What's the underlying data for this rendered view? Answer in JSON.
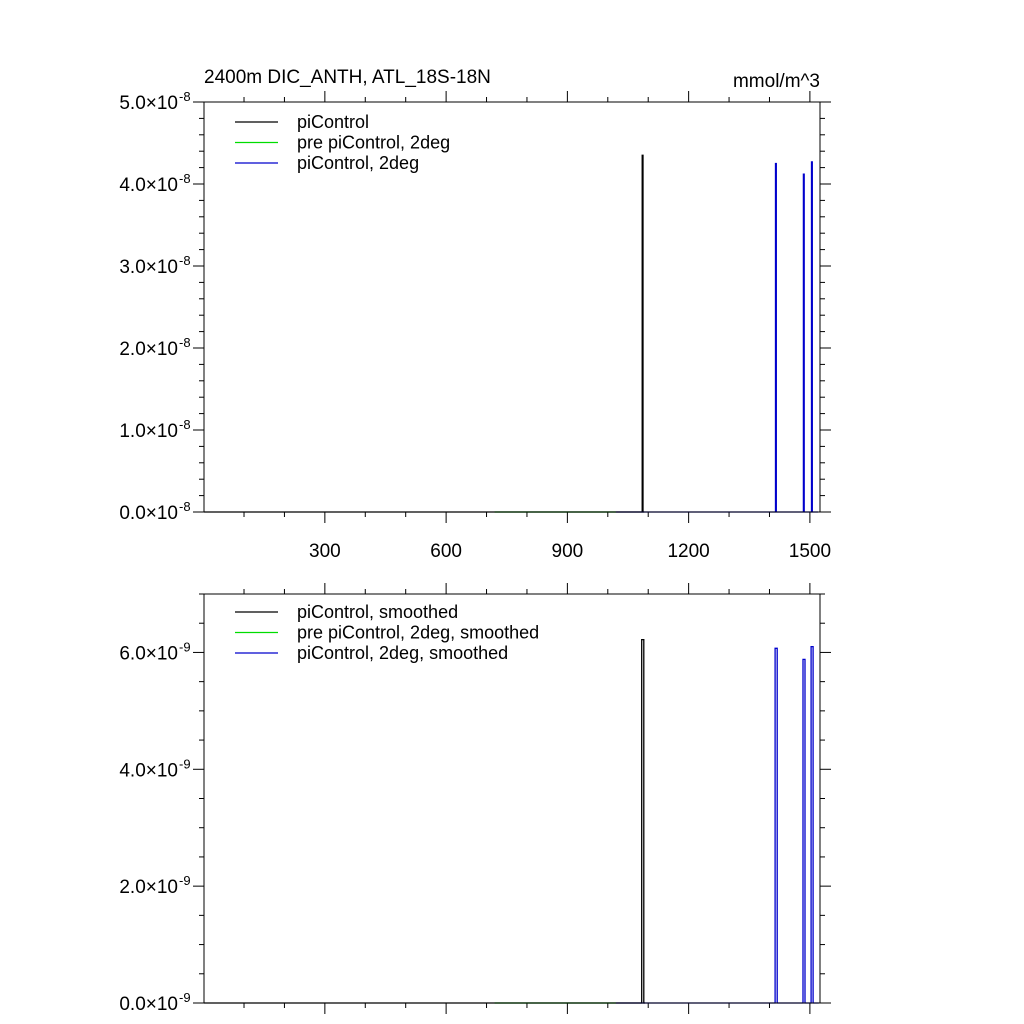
{
  "chart_data": [
    {
      "type": "line",
      "title": "2400m DIC_ANTH, ATL_18S-18N",
      "units": "mmol/m^3",
      "xlim": [
        1,
        1525
      ],
      "ylim": [
        0,
        5e-08
      ],
      "xticks": [
        300,
        600,
        900,
        1200,
        1500
      ],
      "xtick_labels": [
        "300",
        "600",
        "900",
        "1200",
        "1500"
      ],
      "yticks": [
        0,
        1e-08,
        2e-08,
        3e-08,
        4e-08,
        5e-08
      ],
      "ytick_mantissas": [
        "0.0",
        "1.0",
        "2.0",
        "3.0",
        "4.0",
        "5.0"
      ],
      "ytick_base": "10",
      "ytick_exponent": "-8",
      "grid": false,
      "legend_position": "top-left",
      "series": [
        {
          "name": "piControl",
          "color": "#000000",
          "x_range": [
            1,
            1090
          ],
          "spikes": [
            {
              "start": 1085,
              "end": 1087,
              "value": 4.35e-08
            }
          ]
        },
        {
          "name": "pre piControl, 2deg",
          "color": "#00dd00",
          "x_range": [
            720,
            1020
          ],
          "spikes": []
        },
        {
          "name": "piControl, 2deg",
          "color": "#0000cc",
          "x_range": [
            1020,
            1520
          ],
          "spikes": [
            {
              "start": 1415,
              "end": 1417,
              "value": 4.25e-08
            },
            {
              "start": 1484,
              "end": 1486,
              "value": 4.12e-08
            },
            {
              "start": 1504,
              "end": 1506,
              "value": 4.27e-08
            }
          ]
        }
      ]
    },
    {
      "type": "line",
      "xlim": [
        1,
        1525
      ],
      "ylim": [
        0,
        7e-09
      ],
      "yticks": [
        0,
        2e-09,
        4e-09,
        6e-09
      ],
      "ytick_mantissas": [
        "0.0",
        "2.0",
        "4.0",
        "6.0"
      ],
      "ytick_base": "10",
      "ytick_exponent": "-9",
      "grid": false,
      "legend_position": "top-left",
      "series": [
        {
          "name": "piControl, smoothed",
          "color": "#000000",
          "x_range": [
            1,
            1092
          ],
          "spikes": [
            {
              "start": 1084,
              "end": 1089,
              "value": 6.22e-09
            }
          ]
        },
        {
          "name": "pre piControl, 2deg, smoothed",
          "color": "#00dd00",
          "x_range": [
            720,
            1020
          ],
          "spikes": []
        },
        {
          "name": "piControl, 2deg, smoothed",
          "color": "#0000cc",
          "x_range": [
            1020,
            1522
          ],
          "spikes": [
            {
              "start": 1414,
              "end": 1419,
              "value": 6.07e-09
            },
            {
              "start": 1483,
              "end": 1488,
              "value": 5.88e-09
            },
            {
              "start": 1503,
              "end": 1508,
              "value": 6.1e-09
            }
          ]
        }
      ]
    }
  ]
}
